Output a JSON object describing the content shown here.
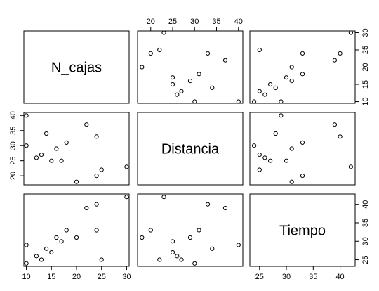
{
  "chart_data": {
    "type": "scatter",
    "variables": [
      "N_cajas",
      "Distancia",
      "Tiempo"
    ],
    "observations": [
      {
        "N_cajas": 10,
        "Distancia": 40,
        "Tiempo": 29
      },
      {
        "N_cajas": 10,
        "Distancia": 30,
        "Tiempo": 24
      },
      {
        "N_cajas": 12,
        "Distancia": 26,
        "Tiempo": 26
      },
      {
        "N_cajas": 13,
        "Distancia": 27,
        "Tiempo": 25
      },
      {
        "N_cajas": 14,
        "Distancia": 34,
        "Tiempo": 28
      },
      {
        "N_cajas": 15,
        "Distancia": 25,
        "Tiempo": 27
      },
      {
        "N_cajas": 16,
        "Distancia": 29,
        "Tiempo": 31
      },
      {
        "N_cajas": 17,
        "Distancia": 25,
        "Tiempo": 30
      },
      {
        "N_cajas": 18,
        "Distancia": 31,
        "Tiempo": 33
      },
      {
        "N_cajas": 20,
        "Distancia": 18,
        "Tiempo": 31
      },
      {
        "N_cajas": 22,
        "Distancia": 37,
        "Tiempo": 39
      },
      {
        "N_cajas": 24,
        "Distancia": 33,
        "Tiempo": 40
      },
      {
        "N_cajas": 24,
        "Distancia": 20,
        "Tiempo": 33
      },
      {
        "N_cajas": 25,
        "Distancia": 22,
        "Tiempo": 25
      },
      {
        "N_cajas": 30,
        "Distancia": 23,
        "Tiempo": 42
      }
    ],
    "ranges": {
      "N_cajas": [
        9.5,
        30.5
      ],
      "Distancia": [
        17,
        41
      ],
      "Tiempo": [
        23.2,
        42.8
      ]
    },
    "ticks": {
      "N_cajas": [
        10,
        15,
        20,
        25,
        30
      ],
      "Distancia": [
        20,
        25,
        30,
        35,
        40
      ],
      "Tiempo": [
        25,
        30,
        35,
        40
      ]
    },
    "grid": false,
    "legend": "none"
  }
}
